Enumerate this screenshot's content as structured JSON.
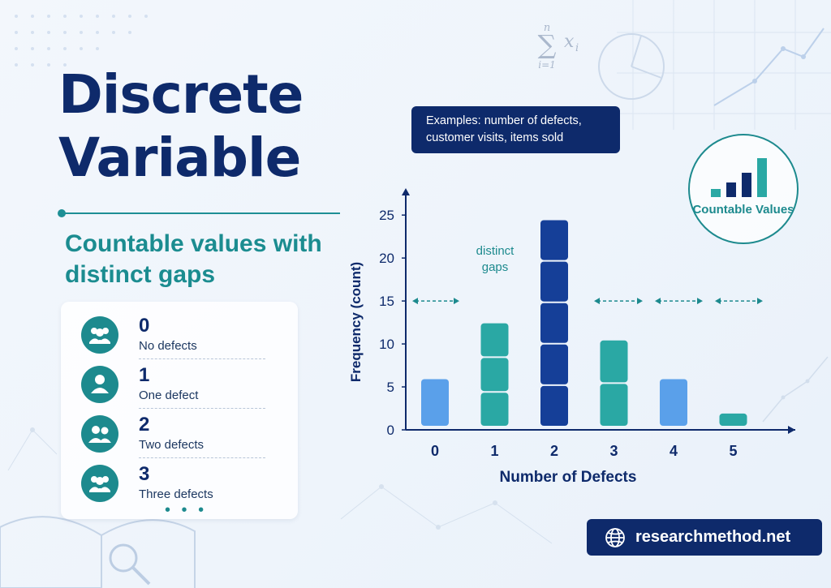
{
  "title_line1": "Discrete",
  "title_line2": "Variable",
  "subtitle": "Countable values with distinct gaps",
  "values_list": [
    {
      "num": "0",
      "desc": "No defects",
      "icon": "group-icon"
    },
    {
      "num": "1",
      "desc": "One defect",
      "icon": "person-icon"
    },
    {
      "num": "2",
      "desc": "Two defects",
      "icon": "pair-icon"
    },
    {
      "num": "3",
      "desc": "Three defects",
      "icon": "group-icon"
    }
  ],
  "more_marker": "• • •",
  "callout_text": "Examples: number of defects, customer visits, items sold",
  "badge_label": "Countable Values",
  "website": "researchmethod.net",
  "formula": {
    "operator": "∑",
    "upper": "n",
    "lower": "i=1",
    "term": "x",
    "subscript": "i"
  },
  "colors": {
    "navy": "#0e2a6b",
    "teal": "#1d8a8e",
    "blue": "#5aa0ea",
    "darkblue": "#153f98",
    "tealbar": "#2aa8a4"
  },
  "chart_data": {
    "type": "bar",
    "categories": [
      "0",
      "1",
      "2",
      "3",
      "4",
      "5"
    ],
    "values": [
      6,
      12.5,
      24.5,
      10.5,
      6,
      2
    ],
    "bar_colors": [
      "#5aa0ea",
      "#2aa8a4",
      "#153f98",
      "#2aa8a4",
      "#5aa0ea",
      "#2aa8a4"
    ],
    "xlabel": "Number of Defects",
    "ylabel": "Frequency (count)",
    "ylim": [
      0,
      27
    ],
    "yticks": [
      0,
      5,
      10,
      15,
      20,
      25
    ],
    "gap_annotation": "distinct gaps",
    "gap_arrows_at": 15
  }
}
